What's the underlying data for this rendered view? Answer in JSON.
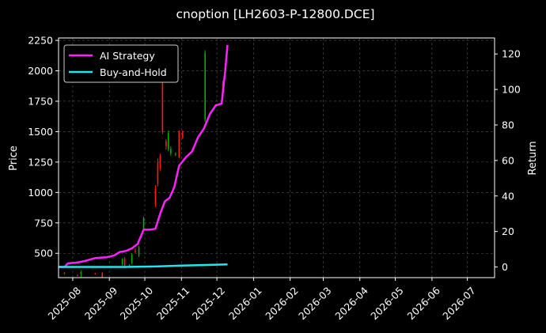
{
  "chart_data": {
    "type": "line",
    "title": "cnoption [LH2603-P-12800.DCE]",
    "ylabel": "Price",
    "y2label": "Return",
    "x_ticks": [
      "2025-08",
      "2025-09",
      "2025-10",
      "2025-11",
      "2025-12",
      "2026-01",
      "2026-02",
      "2026-03",
      "2026-04",
      "2026-05",
      "2026-06",
      "2026-07"
    ],
    "x_range": [
      "2025-07-20",
      "2026-07-24"
    ],
    "y_ticks": [
      500,
      750,
      1000,
      1250,
      1500,
      1750,
      2000,
      2250
    ],
    "y_range": [
      300,
      2270
    ],
    "y2_ticks": [
      0,
      20,
      40,
      60,
      80,
      100,
      120
    ],
    "y2_range": [
      -6,
      129
    ],
    "grid": true,
    "legend_position": "top-left",
    "colors": {
      "up": "#00b000",
      "down": "#ff1a1a",
      "strategy": "#ff22ff",
      "buyhold": "#22e5ee",
      "grid": "#555555"
    },
    "candles": [
      {
        "date": "2025-07-25",
        "open": 340,
        "high": 345,
        "low": 325,
        "close": 335
      },
      {
        "date": "2025-08-05",
        "open": 320,
        "high": 325,
        "low": 312,
        "close": 316
      },
      {
        "date": "2025-08-08",
        "open": 330,
        "high": 360,
        "low": 300,
        "close": 345
      },
      {
        "date": "2025-08-20",
        "open": 335,
        "high": 340,
        "low": 325,
        "close": 330
      },
      {
        "date": "2025-08-26",
        "open": 340,
        "high": 345,
        "low": 270,
        "close": 280
      },
      {
        "date": "2025-09-12",
        "open": 410,
        "high": 460,
        "low": 400,
        "close": 450
      },
      {
        "date": "2025-09-14",
        "open": 455,
        "high": 470,
        "low": 380,
        "close": 390
      },
      {
        "date": "2025-09-18",
        "open": 400,
        "high": 410,
        "low": 390,
        "close": 405
      },
      {
        "date": "2025-09-20",
        "open": 420,
        "high": 500,
        "low": 410,
        "close": 490
      },
      {
        "date": "2025-09-23",
        "open": 520,
        "high": 540,
        "low": 500,
        "close": 510
      },
      {
        "date": "2025-09-26",
        "open": 480,
        "high": 560,
        "low": 470,
        "close": 550
      },
      {
        "date": "2025-09-30",
        "open": 700,
        "high": 800,
        "low": 690,
        "close": 790
      },
      {
        "date": "2025-10-10",
        "open": 1030,
        "high": 1060,
        "low": 880,
        "close": 900
      },
      {
        "date": "2025-10-12",
        "open": 1250,
        "high": 1280,
        "low": 1050,
        "close": 1070
      },
      {
        "date": "2025-10-14",
        "open": 1300,
        "high": 1320,
        "low": 1180,
        "close": 1200
      },
      {
        "date": "2025-10-16",
        "open": 1900,
        "high": 1950,
        "low": 1480,
        "close": 1500
      },
      {
        "date": "2025-10-19",
        "open": 1420,
        "high": 1440,
        "low": 1350,
        "close": 1380
      },
      {
        "date": "2025-10-21",
        "open": 1350,
        "high": 1510,
        "low": 1340,
        "close": 1490
      },
      {
        "date": "2025-10-23",
        "open": 1320,
        "high": 1380,
        "low": 1300,
        "close": 1360
      },
      {
        "date": "2025-10-27",
        "open": 1310,
        "high": 1330,
        "low": 1300,
        "close": 1320
      },
      {
        "date": "2025-10-30",
        "open": 1500,
        "high": 1510,
        "low": 1280,
        "close": 1290
      },
      {
        "date": "2025-11-02",
        "open": 1500,
        "high": 1510,
        "low": 1440,
        "close": 1450
      },
      {
        "date": "2025-11-21",
        "open": 1600,
        "high": 2170,
        "low": 1580,
        "close": 2150
      },
      {
        "date": "2025-12-06",
        "open": 1900,
        "high": 1920,
        "low": 1760,
        "close": 1780
      }
    ],
    "series": [
      {
        "name": "AI Strategy",
        "axis": "right",
        "x": [
          "2025-07-20",
          "2025-07-25",
          "2025-07-28",
          "2025-08-05",
          "2025-08-12",
          "2025-08-20",
          "2025-08-30",
          "2025-09-05",
          "2025-09-10",
          "2025-09-15",
          "2025-09-20",
          "2025-09-25",
          "2025-09-30",
          "2025-10-05",
          "2025-10-10",
          "2025-10-14",
          "2025-10-18",
          "2025-10-22",
          "2025-10-26",
          "2025-10-30",
          "2025-11-05",
          "2025-11-10",
          "2025-11-15",
          "2025-11-20",
          "2025-11-25",
          "2025-11-30",
          "2025-12-05",
          "2025-12-08",
          "2025-12-10"
        ],
        "y": [
          0,
          0,
          2,
          2.5,
          3.5,
          5,
          5.5,
          6.5,
          8.5,
          9,
          10.5,
          13,
          21,
          21,
          21.5,
          30,
          37,
          39,
          45,
          57,
          62,
          65,
          73,
          78,
          86,
          91,
          92,
          110,
          125
        ]
      },
      {
        "name": "Buy-and-Hold",
        "axis": "right",
        "x": [
          "2025-07-20",
          "2025-08-15",
          "2025-09-15",
          "2025-10-10",
          "2025-10-20",
          "2025-11-01",
          "2025-11-15",
          "2025-12-10"
        ],
        "y": [
          0,
          0,
          0,
          0.3,
          0.5,
          0.8,
          1.0,
          1.5
        ]
      }
    ]
  }
}
